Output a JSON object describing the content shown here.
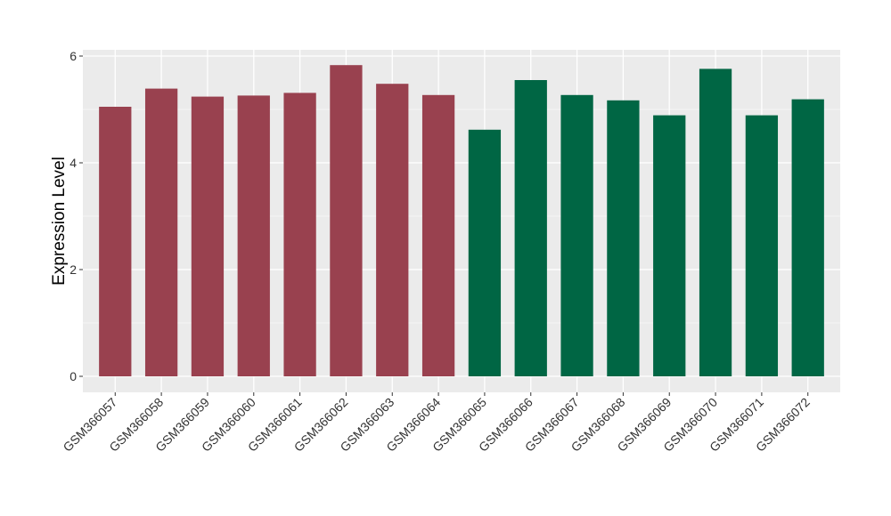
{
  "chart_data": {
    "type": "bar",
    "title": "",
    "xlabel": "",
    "ylabel": "Expression Level",
    "ylim": [
      0,
      6.3
    ],
    "y_ticks": [
      0,
      2,
      4,
      6
    ],
    "categories": [
      "GSM366057",
      "GSM366058",
      "GSM366059",
      "GSM366060",
      "GSM366061",
      "GSM366062",
      "GSM366063",
      "GSM366064",
      "GSM366065",
      "GSM366066",
      "GSM366067",
      "GSM366068",
      "GSM366069",
      "GSM366070",
      "GSM366071",
      "GSM366072"
    ],
    "values": [
      5.05,
      5.39,
      5.24,
      5.26,
      5.31,
      5.83,
      5.48,
      5.27,
      4.62,
      5.55,
      5.27,
      5.17,
      4.89,
      5.76,
      4.89,
      5.19
    ],
    "groups": [
      0,
      0,
      0,
      0,
      0,
      0,
      0,
      0,
      1,
      1,
      1,
      1,
      1,
      1,
      1,
      1
    ],
    "group_colors": [
      "#99414f",
      "#006644"
    ],
    "grid": true,
    "panel_color": "#ebebeb",
    "legend": "none"
  }
}
